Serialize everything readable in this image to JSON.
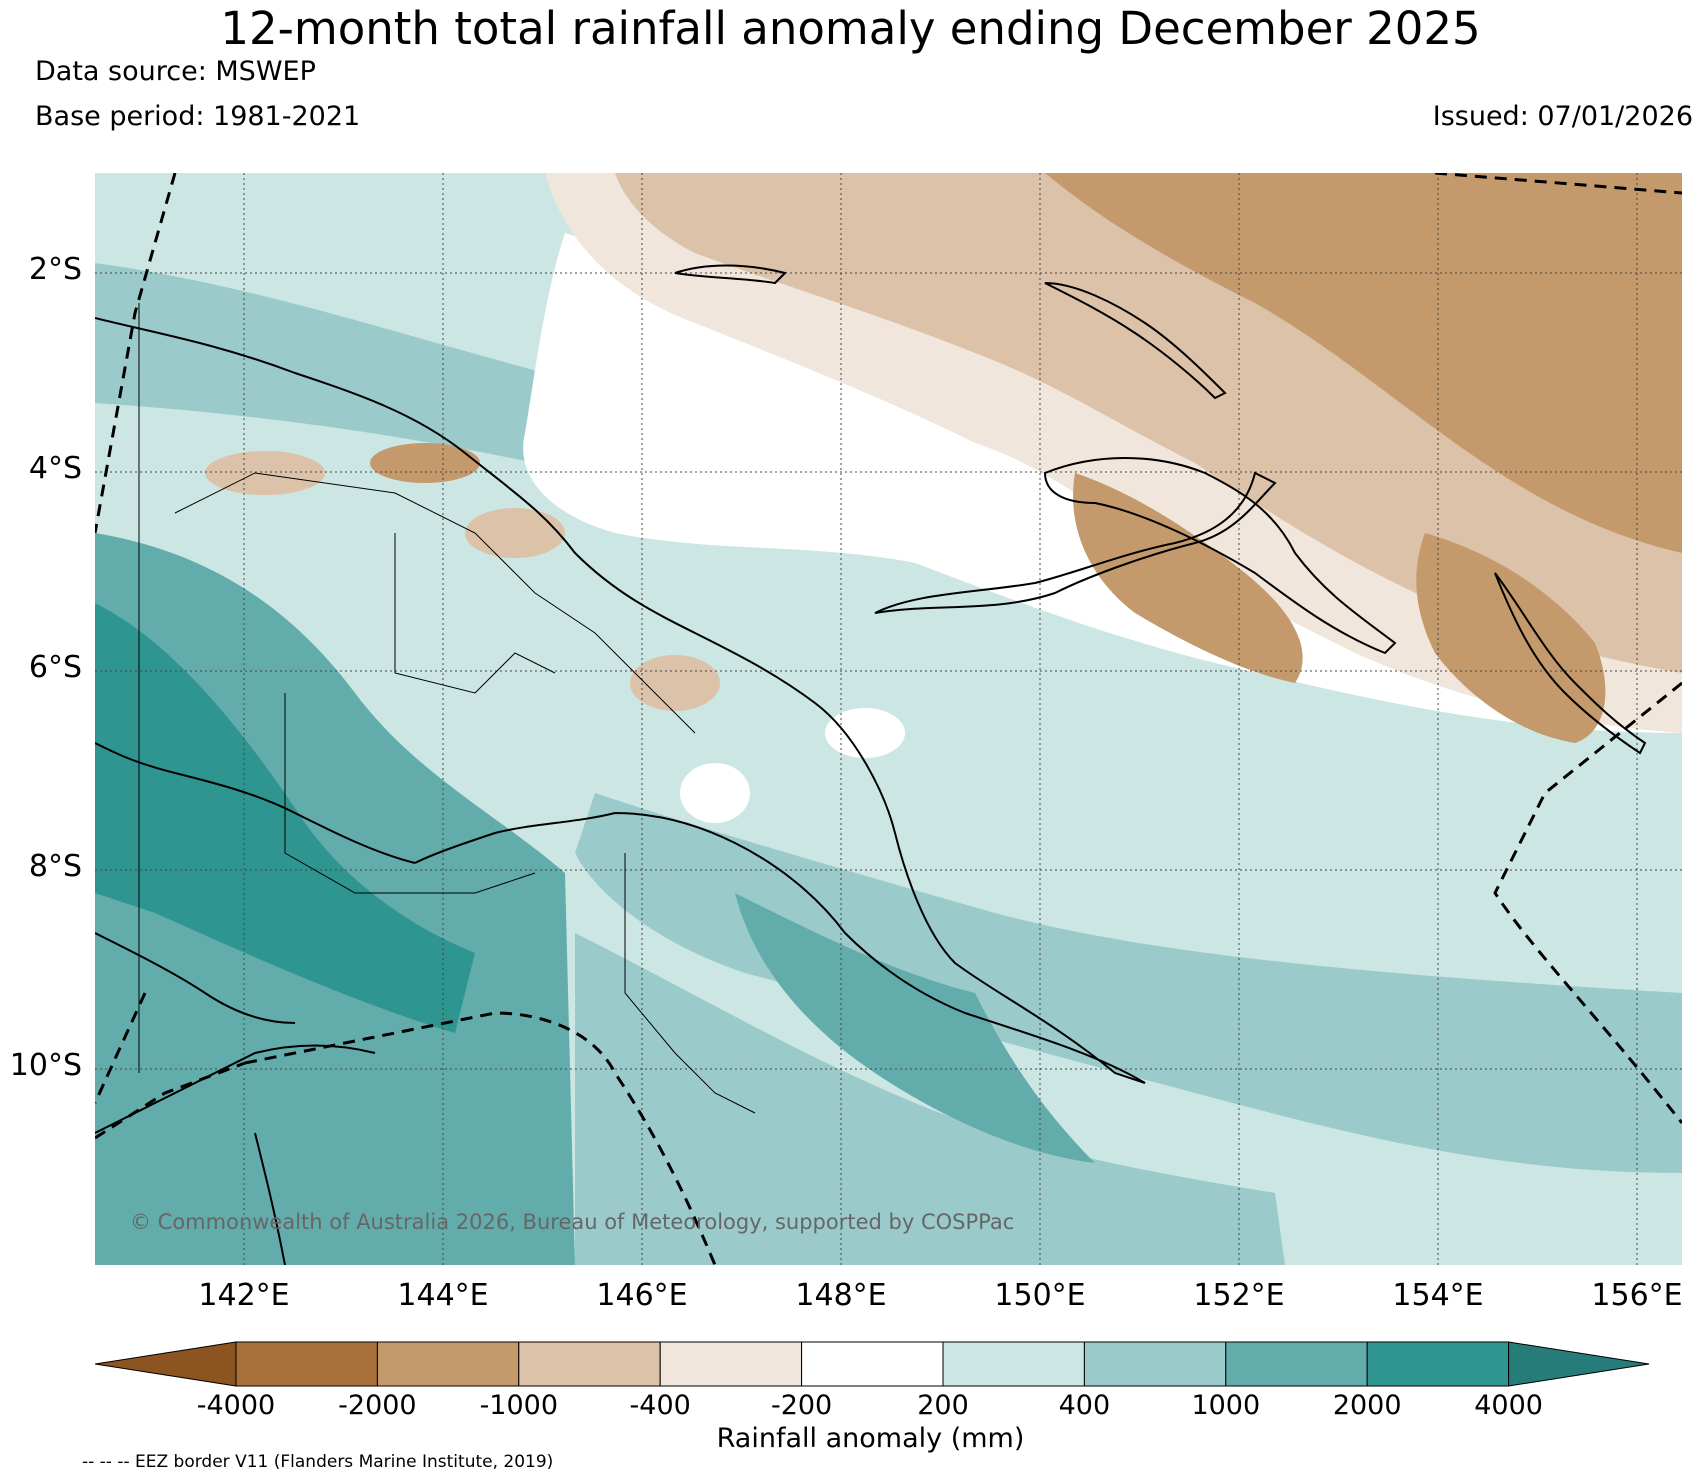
{
  "header": {
    "title": "12-month total rainfall anomaly ending December 2025",
    "data_source": "Data source: MSWEP",
    "base_period": "Base period: 1981-2021",
    "issued": "Issued: 07/01/2026"
  },
  "map": {
    "lat_labels": [
      "2°S",
      "4°S",
      "6°S",
      "8°S",
      "10°S"
    ],
    "lon_labels": [
      "142°E",
      "144°E",
      "146°E",
      "148°E",
      "150°E",
      "152°E",
      "154°E",
      "156°E"
    ],
    "copyright": "© Commonwealth of Australia 2026, Bureau of Meteorology, supported by COSPPac"
  },
  "legend": {
    "label": "Rainfall anomaly (mm)",
    "ticks": [
      "-4000",
      "-2000",
      "-1000",
      "-400",
      "-200",
      "200",
      "400",
      "1000",
      "2000",
      "4000"
    ],
    "colors": [
      "#8c5420",
      "#a8713c",
      "#c49a6c",
      "#dcc2a8",
      "#f0e6dc",
      "#ffffff",
      "#cce6e4",
      "#9acbca",
      "#62adab",
      "#2f9590",
      "#267c78"
    ]
  },
  "footnote": "-- -- -- EEZ border V11 (Flanders Marine Institute, 2019)"
}
